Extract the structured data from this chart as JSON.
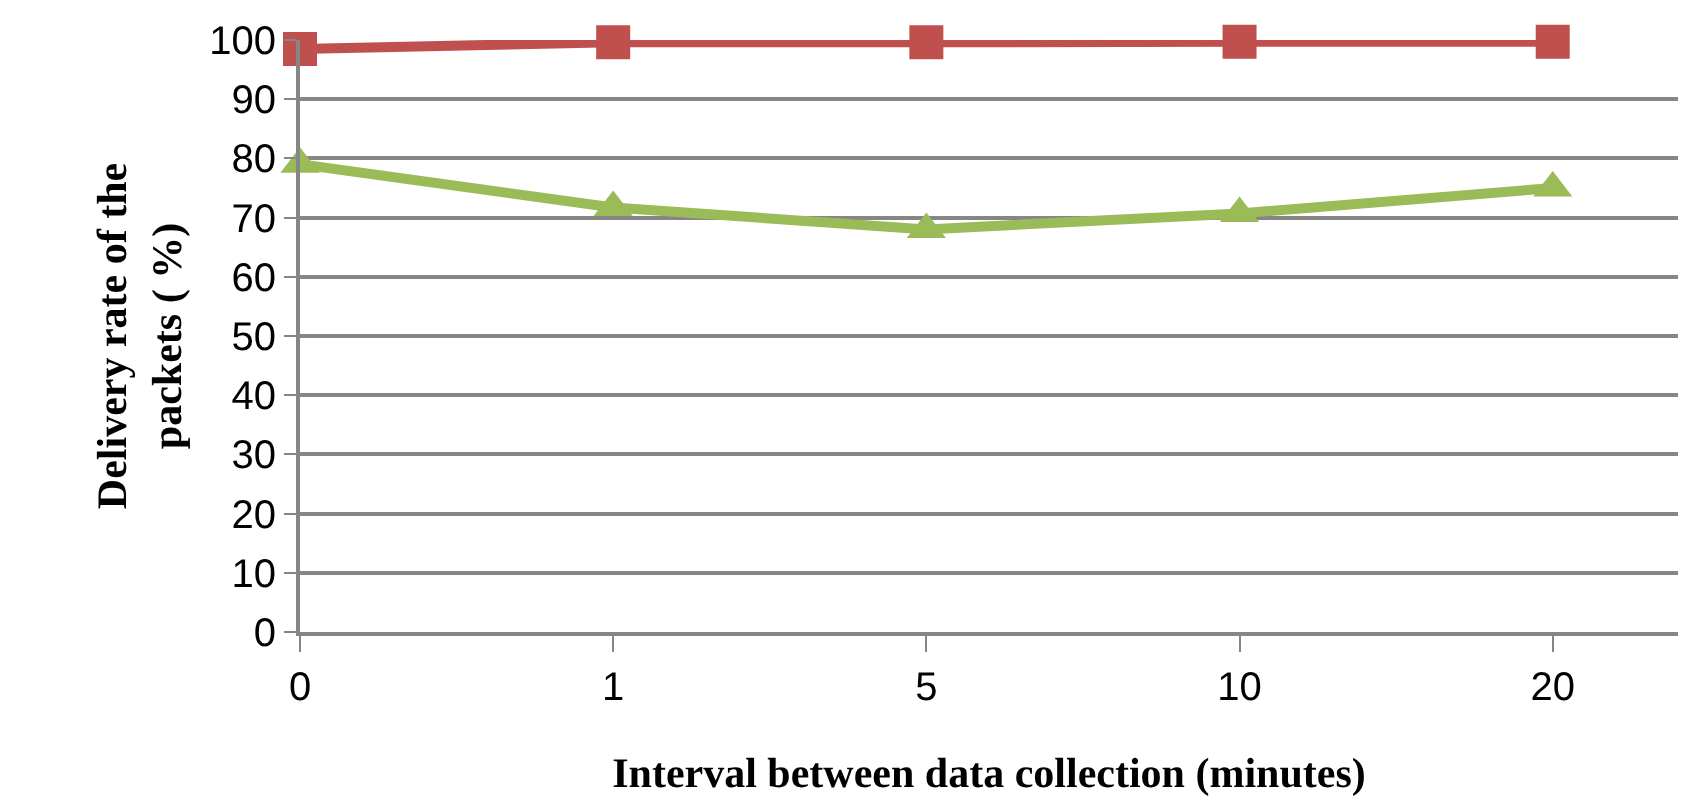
{
  "chart_data": {
    "type": "line",
    "xlabel": "Interval between data collection (minutes)",
    "ylabel": "Delivery rate of the packets ( %)",
    "categories": [
      "0",
      "1",
      "5",
      "10",
      "20"
    ],
    "series": [
      {
        "color": "#c0504d",
        "marker": "square",
        "values": [
          98.5,
          99.6,
          99.6,
          99.7,
          99.7
        ]
      },
      {
        "color": "#9bbb59",
        "marker": "triangle",
        "values": [
          79,
          71.7,
          68,
          70.7,
          75
        ]
      }
    ],
    "ylim": [
      0,
      100
    ],
    "yticks": [
      0,
      10,
      20,
      30,
      40,
      50,
      60,
      70,
      80,
      90,
      100
    ],
    "grid": "y",
    "legend": false
  }
}
